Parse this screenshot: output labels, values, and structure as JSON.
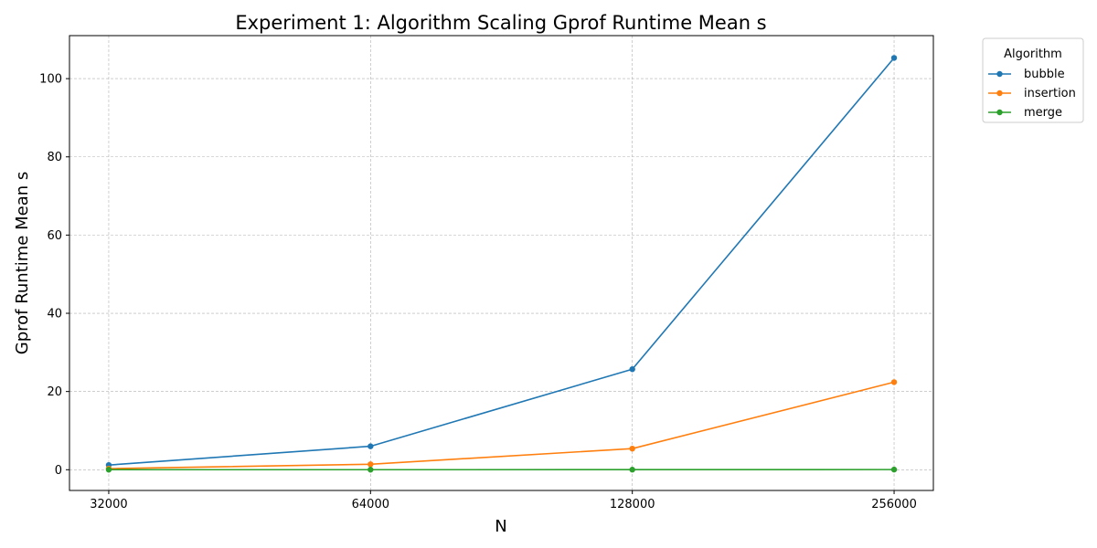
{
  "chart_data": {
    "type": "line",
    "title": "Experiment 1: Algorithm Scaling Gprof Runtime Mean s",
    "xlabel": "N",
    "ylabel": "Gprof Runtime Mean s",
    "categories": [
      "32000",
      "64000",
      "128000",
      "256000"
    ],
    "x": [
      32000,
      64000,
      128000,
      256000
    ],
    "x_scale": "log2",
    "ylim": [
      -5.3,
      111
    ],
    "yticks": [
      0,
      20,
      40,
      60,
      80,
      100
    ],
    "grid": true,
    "legend": {
      "title": "Algorithm",
      "placement": "outside-top-right"
    },
    "series": [
      {
        "name": "bubble",
        "color": "#1f77b4",
        "values": [
          1.2,
          6.0,
          25.7,
          105.3
        ]
      },
      {
        "name": "insertion",
        "color": "#ff7f0e",
        "values": [
          0.3,
          1.4,
          5.4,
          22.4
        ]
      },
      {
        "name": "merge",
        "color": "#2ca02c",
        "values": [
          0.01,
          0.01,
          0.02,
          0.04
        ]
      }
    ]
  }
}
